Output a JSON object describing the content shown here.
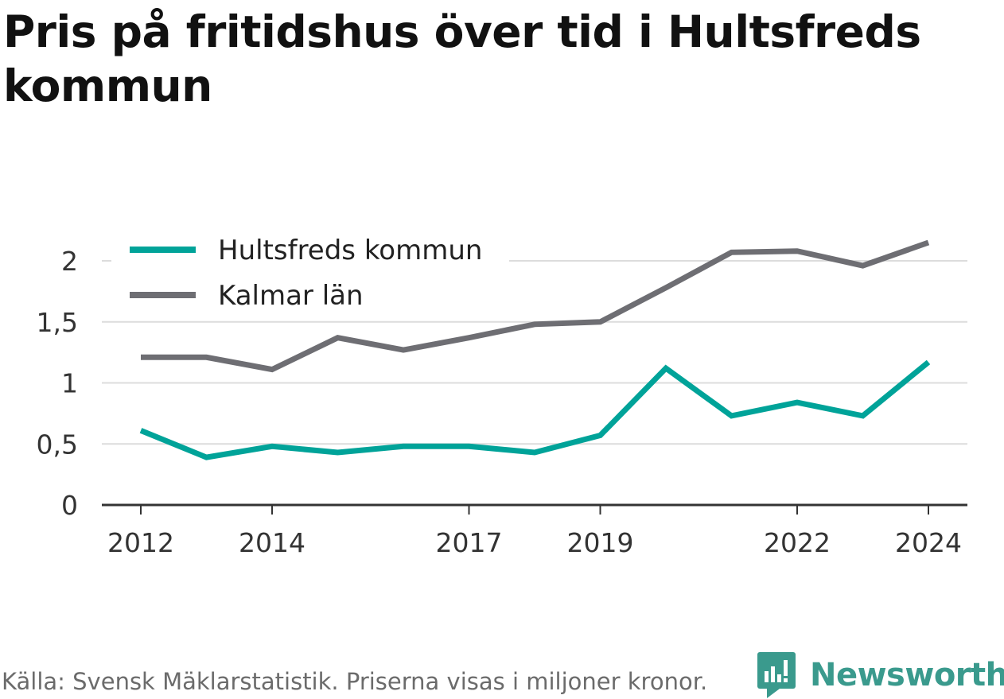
{
  "chart_data": {
    "type": "line",
    "title": "Pris på fritidshus över tid i Hultsfreds kommun",
    "xlabel": "",
    "ylabel": "",
    "x": [
      2012,
      2013,
      2014,
      2015,
      2016,
      2017,
      2018,
      2019,
      2020,
      2021,
      2022,
      2023,
      2024
    ],
    "x_ticks": [
      "2012",
      "2014",
      "2017",
      "2019",
      "2022",
      "2024"
    ],
    "x_tick_values": [
      2012,
      2014,
      2017,
      2019,
      2022,
      2024
    ],
    "y_ticks": [
      "0",
      "0,5",
      "1",
      "1,5",
      "2"
    ],
    "y_tick_values": [
      0,
      0.5,
      1,
      1.5,
      2
    ],
    "ylim": [
      0,
      2.2
    ],
    "grid": true,
    "legend_position": "top-left",
    "series": [
      {
        "name": "Hultsfreds kommun",
        "color": "#00a399",
        "values": [
          0.61,
          0.39,
          0.48,
          0.43,
          0.48,
          0.48,
          0.43,
          0.57,
          1.12,
          0.73,
          0.84,
          0.73,
          1.17
        ]
      },
      {
        "name": "Kalmar län",
        "color": "#6e6e73",
        "values": [
          1.21,
          1.21,
          1.11,
          1.37,
          1.27,
          1.37,
          1.48,
          1.5,
          1.78,
          2.07,
          2.08,
          1.96,
          2.15
        ]
      }
    ]
  },
  "header": {
    "title": "Pris på fritidshus över tid i Hultsfreds kommun"
  },
  "footer": {
    "source": "Källa: Svensk Mäklarstatistik. Priserna visas i miljoner kronor.",
    "brand": "Newsworthy",
    "brand_color": "#3a9a8d",
    "brand_icon": "newsworthy-logo-icon"
  }
}
